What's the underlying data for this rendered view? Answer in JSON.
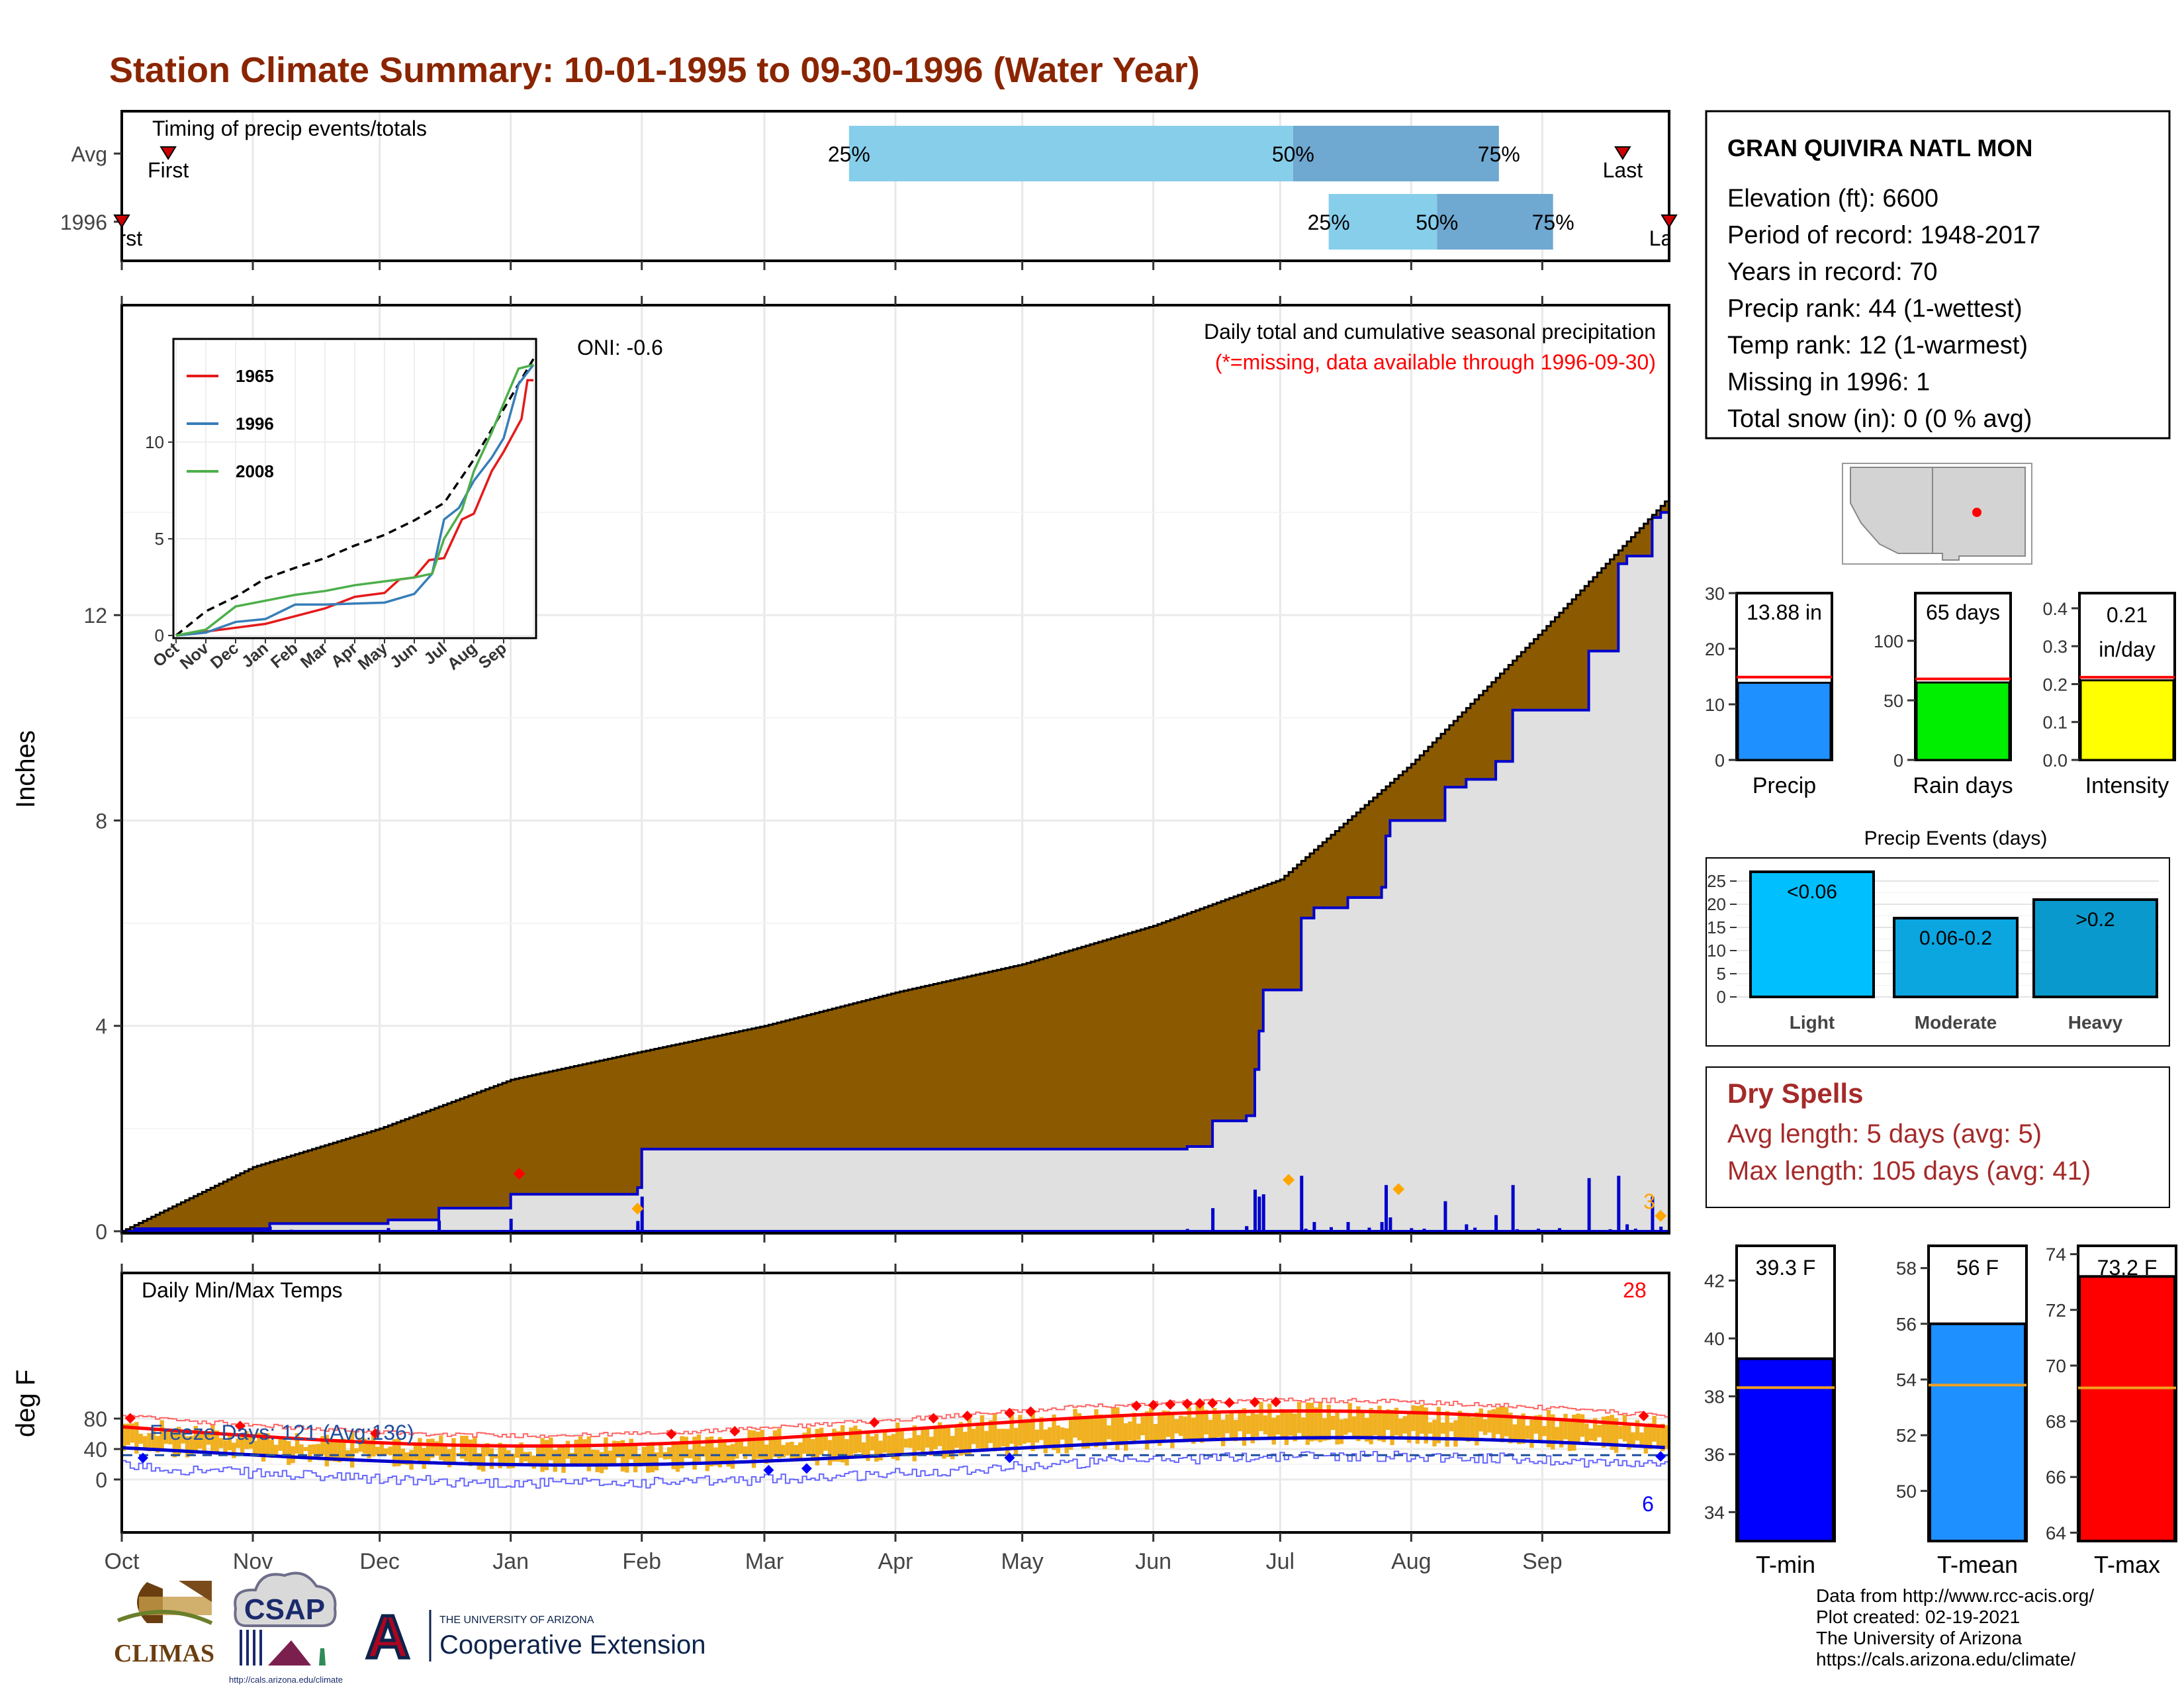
{
  "title": "Station Climate Summary: 10-01-1995 to 09-30-1996 (Water Year)",
  "colors": {
    "title": "#8B2500",
    "precip_fill": "#8B5A00",
    "cumulative_area": "#E0E0E0",
    "cumulative_line": "#0000CD",
    "daily_bar": "#0000CD",
    "temp_bar": "#F0B020",
    "tmax_avg": "#FF0000",
    "tmin_avg": "#0000CD",
    "record_hi": "#FF0000",
    "record_lo": "#0000FF",
    "dry_spell_text": "#A52A2A",
    "bar_precip": "#1E90FF",
    "bar_rain_days": "#00EE00",
    "bar_intensity": "#FFFF00",
    "bar_events": "#00BFFF",
    "bar_tmin": "#0000FF",
    "bar_tmean": "#1E90FF",
    "bar_tmax": "#FF0000"
  },
  "timing": {
    "label": "Timing of precip events/totals",
    "rows": [
      {
        "name": "Avg",
        "first_label": "First",
        "last_label": "Last",
        "first_pos": 0.03,
        "last_pos": 0.97,
        "q25": 0.47,
        "q50": 0.757,
        "q75": 0.89,
        "q25_label": "25%",
        "q50_label": "50%",
        "q75_label": "75%"
      },
      {
        "name": "1996",
        "first_label": "First",
        "last_label": "Last",
        "first_pos": 0.0,
        "last_pos": 1.0,
        "q25": 0.78,
        "q50": 0.85,
        "q75": 0.925,
        "q25_label": "25%",
        "q50_label": "50%",
        "q75_label": "75%"
      }
    ]
  },
  "precip_panel": {
    "ylabel": "Inches",
    "yticks": [
      "0",
      "4",
      "8",
      "12"
    ],
    "ylim": [
      0,
      15.6
    ],
    "title_line1": "Daily total and cumulative seasonal precipitation",
    "title_line2": "(*=missing, data available through 1996-09-30)",
    "oni": "ONI: -0.6",
    "count_label": "3"
  },
  "inset": {
    "legend": [
      "1965",
      "1996",
      "2008"
    ],
    "legend_colors": [
      "#E41A1C",
      "#377EB8",
      "#4DAF4A"
    ],
    "yticks": [
      "0",
      "5",
      "10"
    ],
    "xticks": [
      "Oct",
      "Nov",
      "Dec",
      "Jan",
      "Feb",
      "Mar",
      "Apr",
      "May",
      "Jun",
      "Jul",
      "Aug",
      "Sep"
    ]
  },
  "temp_panel": {
    "ylabel": "deg F",
    "label": "Daily Min/Max Temps",
    "freeze_label": "Freeze Days: 121 (Avg:136)",
    "hi_count": "28",
    "lo_count": "6",
    "yticks": [
      "0",
      "40",
      "80"
    ]
  },
  "months": [
    "Oct",
    "Nov",
    "Dec",
    "Jan",
    "Feb",
    "Mar",
    "Apr",
    "May",
    "Jun",
    "Jul",
    "Aug",
    "Sep"
  ],
  "station": {
    "name": "GRAN QUIVIRA NATL MON",
    "lines": [
      "Elevation (ft): 6600",
      "Period of record: 1948-2017",
      "Years in record: 70",
      "Precip rank: 44 (1-wettest)",
      "Temp rank: 12 (1-warmest)",
      "Missing in 1996: 1",
      "Total snow (in): 0 (0 % avg)"
    ]
  },
  "mini_bars": [
    {
      "label": "Precip",
      "value": 13.88,
      "value_label": "13.88 in",
      "avg": 14.9,
      "ymax": 30,
      "yticks": [
        "0",
        "10",
        "20",
        "30"
      ]
    },
    {
      "label": "Rain days",
      "value": 65,
      "value_label": "65 days",
      "avg": 68,
      "ymax": 140,
      "yticks": [
        "0",
        "50",
        "100"
      ]
    },
    {
      "label": "Intensity",
      "value": 0.21,
      "value_label1": "0.21",
      "value_label2": "in/day",
      "avg": 0.218,
      "ymax": 0.44,
      "yticks": [
        "0.0",
        "0.1",
        "0.2",
        "0.3",
        "0.4"
      ]
    }
  ],
  "events": {
    "title": "Precip Events (days)",
    "categories": [
      "Light",
      "Moderate",
      "Heavy"
    ],
    "bar_labels": [
      "<0.06",
      "0.06-0.2",
      ">0.2"
    ],
    "values": [
      27,
      17,
      21
    ],
    "ymax": 28,
    "yticks": [
      "0",
      "5",
      "10",
      "15",
      "20",
      "25"
    ]
  },
  "dry_spells": {
    "title": "Dry Spells",
    "avg_line": "Avg length: 5 days (avg: 5)",
    "max_line": "Max length: 105 days (avg: 41)"
  },
  "temp_bars": [
    {
      "label": "T-min",
      "value": 39.3,
      "value_label": "39.3 F",
      "avg": 38.3,
      "ymin": 33,
      "ymax": 43.2,
      "yticks": [
        34,
        36,
        38,
        40,
        42
      ]
    },
    {
      "label": "T-mean",
      "value": 56.0,
      "value_label": "56 F",
      "avg": 53.8,
      "ymin": 48.2,
      "ymax": 58.8,
      "yticks": [
        50,
        52,
        54,
        56,
        58
      ]
    },
    {
      "label": "T-max",
      "value": 73.2,
      "value_label": "73.2 F",
      "avg": 69.2,
      "ymin": 63.7,
      "ymax": 74.3,
      "yticks": [
        64,
        66,
        68,
        70,
        72,
        74
      ]
    }
  ],
  "footer": {
    "lines": [
      "Data from http://www.rcc-acis.org/",
      "Plot created: 02-19-2021",
      "The University of Arizona",
      "https://cals.arizona.edu/climate/"
    ],
    "climas": "CLIMAS",
    "csap": "CSAP",
    "csap_url": "http://cals.arizona.edu/climate",
    "ua_small": "THE UNIVERSITY OF ARIZONA",
    "ua_big": "Cooperative Extension",
    "ua_letter": "A"
  }
}
